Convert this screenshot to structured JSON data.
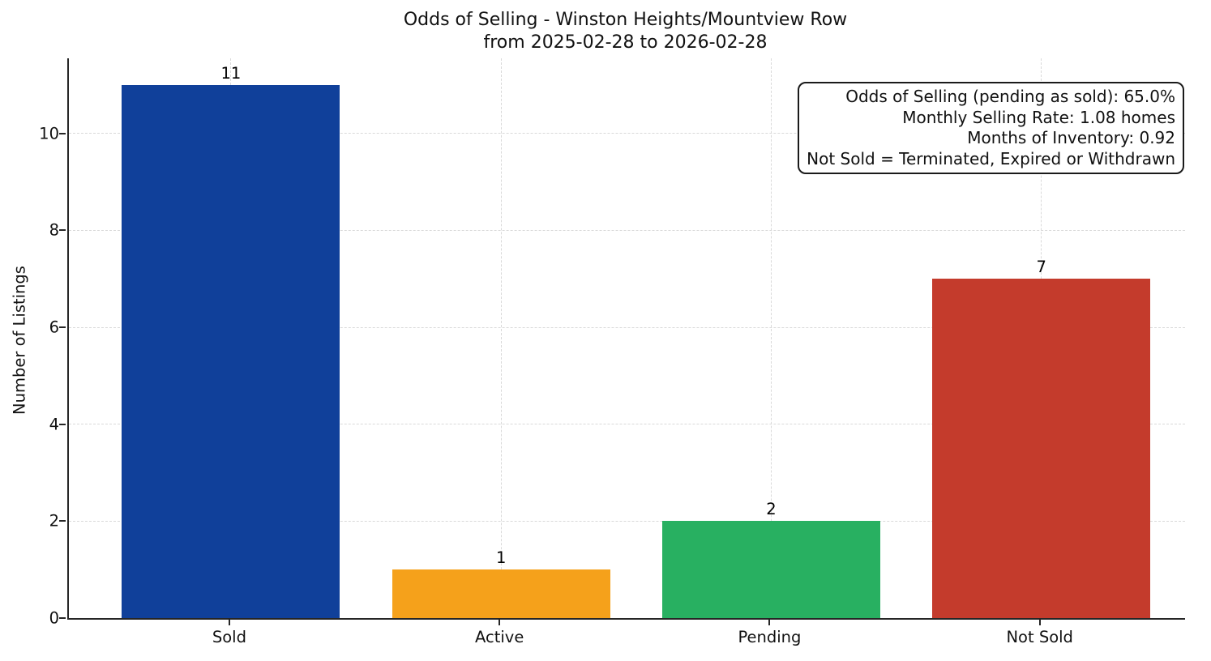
{
  "chart_data": {
    "type": "bar",
    "title": "Odds of Selling - Winston Heights/Mountview Row",
    "subtitle": "from 2025-02-28 to 2026-02-28",
    "categories": [
      "Sold",
      "Active",
      "Pending",
      "Not Sold"
    ],
    "values": [
      11,
      1,
      2,
      7
    ],
    "bar_colors": [
      "#10409a",
      "#f5a11b",
      "#28b061",
      "#c43b2c"
    ],
    "xlabel": "",
    "ylabel": "Number of Listings",
    "ylim": [
      0,
      11.55
    ],
    "yticks": [
      0,
      2,
      4,
      6,
      8,
      10
    ],
    "grid": {
      "style": "dashed",
      "axes": "both",
      "color": "#d9d9d9"
    },
    "legend": "none",
    "annotation": {
      "position": "top-right",
      "lines": [
        "Odds of Selling (pending as sold): 65.0%",
        "Monthly Selling Rate: 1.08 homes",
        "Months of Inventory: 0.92",
        "Not Sold = Terminated, Expired or Withdrawn"
      ]
    }
  },
  "colors": {
    "spine": "#262626",
    "text": "#111111",
    "background": "#ffffff"
  }
}
